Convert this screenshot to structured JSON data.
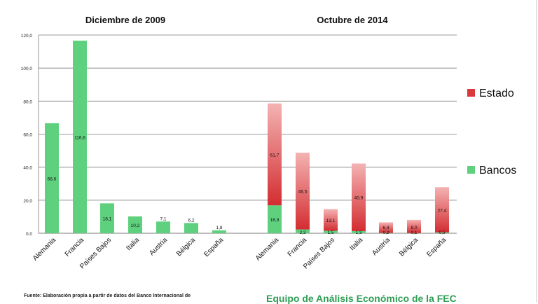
{
  "chart_data": {
    "type": "bar",
    "stacked": true,
    "ylim": [
      0,
      120
    ],
    "yticks": [
      "0,0",
      "20,0",
      "40,0",
      "60,0",
      "80,0",
      "100,0",
      "120,0"
    ],
    "panels": [
      {
        "title": "Diciembre de 2009",
        "categories": [
          "Alemania",
          "Francia",
          "Países Bajos",
          "Italia",
          "Austria",
          "Bélgica",
          "España"
        ],
        "series": [
          {
            "name": "Bancos",
            "values": [
              66.6,
              116.6,
              18.1,
              10.2,
              7.1,
              6.2,
              1.8
            ],
            "labels": [
              "66,6",
              "116,6",
              "18,1",
              "10,2",
              "7,1",
              "6,2",
              "1,8"
            ]
          }
        ]
      },
      {
        "title": "Octubre de 2014",
        "categories": [
          "Alemania",
          "Francia",
          "Países Bajos",
          "Italia",
          "Austria",
          "Bélgica",
          "España"
        ],
        "series": [
          {
            "name": "Bancos",
            "values": [
              16.9,
              2.3,
              1.5,
              1.3,
              0.2,
              0.1,
              0.5
            ],
            "labels": [
              "16,9",
              "2,3",
              "1,5",
              "1,3",
              "0,2",
              "0,1",
              "0,5"
            ]
          },
          {
            "name": "Estado",
            "values": [
              61.7,
              46.5,
              13.1,
              40.9,
              6.4,
              8.0,
              27.4
            ],
            "labels": [
              "61,7",
              "46,5",
              "13,1",
              "40,9",
              "6,4",
              "8,0",
              "27,4"
            ]
          }
        ]
      }
    ],
    "legend": [
      {
        "name": "Estado",
        "color": "#d9383c"
      },
      {
        "name": "Bancos",
        "color": "#5fd17e"
      }
    ],
    "colors": {
      "bancos": "#5fd17e",
      "estado_top": "#f4b3b3",
      "estado_bottom": "#d32d31",
      "grid": "#7a7a7a"
    }
  },
  "footer": {
    "source": "Fuente: Elaboración propia a partir de datos del Banco Internacional de",
    "team": "Equipo de Análisis Económico de la FEC"
  }
}
